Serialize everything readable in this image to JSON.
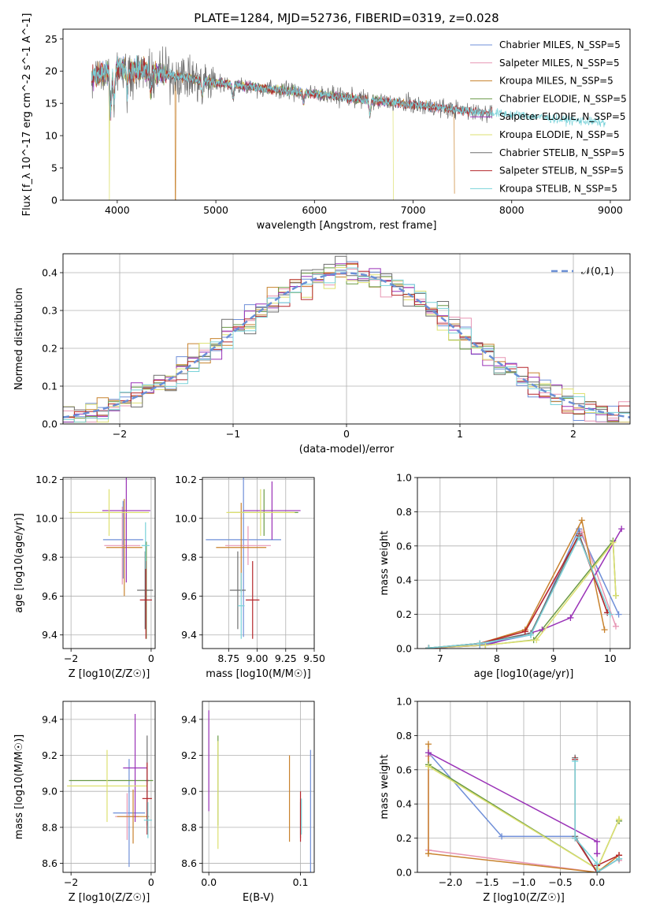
{
  "figure_title": "PLATE=1284, MJD=52736, FIBERID=0319, z=0.028",
  "colors": [
    "#6f8fd8",
    "#e796b4",
    "#c8822d",
    "#6a9a45",
    "#9a32b7",
    "#dde070",
    "#6f6f6f",
    "#b5272b",
    "#79d2d9"
  ],
  "chart_data": [
    {
      "type": "line",
      "id": "spectrum",
      "xlabel": "wavelength [Angstrom, rest frame]",
      "ylabel": "Flux [f_λ 10^-17 erg cm^-2 s^-1 A^-1]",
      "xlim": [
        3450,
        9200
      ],
      "ylim": [
        0,
        26.5
      ],
      "xticks": [
        4000,
        5000,
        6000,
        7000,
        8000,
        9000
      ],
      "yticks": [
        0,
        5,
        10,
        15,
        20,
        25
      ],
      "grid": false,
      "legend": "top-right",
      "series": [
        {
          "name": "Chabrier MILES, N_SSP=5",
          "xrange": [
            3740,
            7420
          ]
        },
        {
          "name": "Salpeter MILES, N_SSP=5",
          "xrange": [
            3740,
            7420
          ]
        },
        {
          "name": "Kroupa MILES, N_SSP=5",
          "xrange": [
            3740,
            7420
          ],
          "dips": [
            [
              4590,
              0
            ],
            [
              7420,
              1
            ]
          ]
        },
        {
          "name": "Chabrier ELODIE, N_SSP=5",
          "xrange": [
            3740,
            6800
          ]
        },
        {
          "name": "Salpeter ELODIE, N_SSP=5",
          "xrange": [
            3740,
            6800
          ]
        },
        {
          "name": "Kroupa ELODIE, N_SSP=5",
          "xrange": [
            3740,
            6800
          ],
          "dips": [
            [
              3920,
              0
            ],
            [
              6800,
              0
            ]
          ]
        },
        {
          "name": "Chabrier STELIB, N_SSP=5",
          "xrange": [
            3740,
            7800
          ]
        },
        {
          "name": "Salpeter STELIB, N_SSP=5",
          "xrange": [
            3740,
            7800
          ]
        },
        {
          "name": "Kroupa STELIB, N_SSP=5",
          "xrange": [
            3740,
            8950
          ]
        }
      ],
      "continuum": [
        [
          3740,
          19
        ],
        [
          4000,
          20.5
        ],
        [
          4500,
          19.5
        ],
        [
          5000,
          18.2
        ],
        [
          5500,
          17.3
        ],
        [
          6000,
          16.5
        ],
        [
          6500,
          15.6
        ],
        [
          7000,
          14.8
        ],
        [
          7500,
          13.9
        ],
        [
          8000,
          13.3
        ],
        [
          8500,
          12.5
        ],
        [
          8950,
          12
        ]
      ]
    },
    {
      "type": "histogram",
      "id": "residuals",
      "xlabel": "(data-model)/error",
      "ylabel": "Normed distribution",
      "xlim": [
        -2.5,
        2.5
      ],
      "ylim": [
        0,
        0.45
      ],
      "xticks": [
        -2,
        -1,
        0,
        1,
        2
      ],
      "yticks": [
        0.0,
        0.1,
        0.2,
        0.3,
        0.4
      ],
      "grid": true,
      "legend": "top-right",
      "reference": {
        "name": "𝒩(0,1)",
        "mean": 0,
        "sigma": 1
      },
      "bin_width": 0.1
    },
    {
      "type": "errorbar",
      "id": "age_vs_Z",
      "xlabel": "Z [log10(Z/Z☉)]",
      "ylabel": "age  [log10(age/yr)]",
      "xlim": [
        -2.2,
        0.1
      ],
      "ylim": [
        9.33,
        10.21
      ],
      "xticks": [
        -2,
        0
      ],
      "yticks": [
        9.4,
        9.6,
        9.8,
        10.0,
        10.2
      ],
      "grid": true,
      "points": [
        {
          "c": 0,
          "x": -0.7,
          "xerr": 0.5,
          "y": 9.89,
          "yerr": 0.2
        },
        {
          "c": 1,
          "x": -0.72,
          "xerr": 0.45,
          "y": 9.86,
          "yerr": 0.2
        },
        {
          "c": 2,
          "x": -0.67,
          "xerr": 0.45,
          "y": 9.85,
          "yerr": 0.25
        },
        {
          "c": 3,
          "x": -0.12,
          "xerr": 0.05,
          "y": 9.63,
          "yerr": 0.25
        },
        {
          "c": 4,
          "x": -0.62,
          "xerr": 0.6,
          "y": 10.04,
          "yerr": 0.37
        },
        {
          "c": 5,
          "x": -1.05,
          "xerr": 1.0,
          "y": 10.03,
          "yerr": 0.12
        },
        {
          "c": 6,
          "x": -0.15,
          "xerr": 0.2,
          "y": 9.63,
          "yerr": 0.2
        },
        {
          "c": 7,
          "x": -0.13,
          "xerr": 0.15,
          "y": 9.58,
          "yerr": 0.2
        },
        {
          "c": 8,
          "x": -0.14,
          "xerr": 0.1,
          "y": 9.86,
          "yerr": 0.12
        }
      ]
    },
    {
      "type": "errorbar",
      "id": "age_vs_mass",
      "xlabel": "mass [log10(M/M☉)]",
      "ylabel": "",
      "xlim": [
        8.52,
        9.5
      ],
      "ylim": [
        9.33,
        10.21
      ],
      "xticks": [
        8.75,
        9.0,
        9.25,
        9.5
      ],
      "yticks": [
        9.4,
        9.6,
        9.8,
        10.0,
        10.2
      ],
      "grid": true,
      "points": [
        {
          "c": 0,
          "x": 8.88,
          "xerr": 0.33,
          "y": 9.89,
          "yerr": 0.5
        },
        {
          "c": 1,
          "x": 8.92,
          "xerr": 0.2,
          "y": 9.86,
          "yerr": 0.1
        },
        {
          "c": 2,
          "x": 8.86,
          "xerr": 0.22,
          "y": 9.85,
          "yerr": 0.23
        },
        {
          "c": 3,
          "x": 9.06,
          "xerr": 0.3,
          "y": 10.03,
          "yerr": 0.12
        },
        {
          "c": 4,
          "x": 9.13,
          "xerr": 0.25,
          "y": 10.04,
          "yerr": 0.15
        },
        {
          "c": 5,
          "x": 9.03,
          "xerr": 0.3,
          "y": 10.03,
          "yerr": 0.12
        },
        {
          "c": 6,
          "x": 8.83,
          "xerr": 0.07,
          "y": 9.63,
          "yerr": 0.2
        },
        {
          "c": 7,
          "x": 8.96,
          "xerr": 0.06,
          "y": 9.58,
          "yerr": 0.2
        },
        {
          "c": 8,
          "x": 8.86,
          "xerr": 0.03,
          "y": 9.55,
          "yerr": 0.17
        }
      ]
    },
    {
      "type": "line",
      "id": "weight_vs_age",
      "xlabel": "age  [log10(age/yr)]",
      "ylabel": "mass weight",
      "xlim": [
        6.6,
        10.35
      ],
      "ylim": [
        0,
        1.0
      ],
      "xticks": [
        7,
        8,
        9,
        10
      ],
      "yticks": [
        0.0,
        0.2,
        0.4,
        0.6,
        0.8,
        1.0
      ],
      "grid": true,
      "series": [
        {
          "c": 0,
          "x": [
            6.8,
            7.7,
            8.6,
            9.45,
            10.15
          ],
          "y": [
            0.003,
            0.02,
            0.08,
            0.7,
            0.2
          ]
        },
        {
          "c": 1,
          "x": [
            6.8,
            7.7,
            8.5,
            9.5,
            10.1
          ],
          "y": [
            0.002,
            0.03,
            0.1,
            0.68,
            0.13
          ]
        },
        {
          "c": 2,
          "x": [
            6.8,
            7.7,
            8.5,
            9.5,
            9.9
          ],
          "y": [
            0.003,
            0.03,
            0.11,
            0.75,
            0.11
          ]
        },
        {
          "c": 3,
          "x": [
            6.8,
            7.8,
            8.65,
            10.05,
            10.1
          ],
          "y": [
            0.002,
            0.02,
            0.05,
            0.63,
            0.31
          ]
        },
        {
          "c": 4,
          "x": [
            6.8,
            7.8,
            8.8,
            9.3,
            10.2
          ],
          "y": [
            0.002,
            0.02,
            0.11,
            0.18,
            0.7
          ]
        },
        {
          "c": 5,
          "x": [
            6.8,
            7.8,
            8.7,
            10.05,
            10.1
          ],
          "y": [
            0.003,
            0.02,
            0.05,
            0.62,
            0.31
          ]
        },
        {
          "c": 6,
          "x": [
            6.8,
            7.7,
            8.6,
            9.45,
            9.95
          ],
          "y": [
            0.003,
            0.03,
            0.09,
            0.67,
            0.21
          ]
        },
        {
          "c": 7,
          "x": [
            6.8,
            7.7,
            8.5,
            9.45,
            9.95
          ],
          "y": [
            0.002,
            0.03,
            0.1,
            0.66,
            0.21
          ]
        },
        {
          "c": 8,
          "x": [
            6.8,
            7.7,
            8.6,
            9.45,
            10.0
          ],
          "y": [
            0.003,
            0.03,
            0.08,
            0.65,
            0.2
          ]
        }
      ]
    },
    {
      "type": "errorbar",
      "id": "mass_vs_Z",
      "xlabel": "Z [log10(Z/Z☉)]",
      "ylabel": "mass [log10(M/M☉)]",
      "xlim": [
        -2.2,
        0.1
      ],
      "ylim": [
        8.55,
        9.5
      ],
      "xticks": [
        -2,
        0
      ],
      "yticks": [
        8.6,
        8.8,
        9.0,
        9.2,
        9.4
      ],
      "grid": true,
      "points": [
        {
          "c": 0,
          "x": -0.55,
          "xerr": 0.4,
          "y": 8.88,
          "yerr": 0.3
        },
        {
          "c": 1,
          "x": -0.6,
          "xerr": 0.3,
          "y": 8.86,
          "yerr": 0.13
        },
        {
          "c": 2,
          "x": -0.45,
          "xerr": 0.4,
          "y": 8.86,
          "yerr": 0.15
        },
        {
          "c": 3,
          "x": -1.0,
          "xerr": 1.05,
          "y": 9.06,
          "yerr": 0.0
        },
        {
          "c": 4,
          "x": -0.4,
          "xerr": 0.3,
          "y": 9.13,
          "yerr": 0.3
        },
        {
          "c": 5,
          "x": -1.1,
          "xerr": 1.0,
          "y": 9.03,
          "yerr": 0.2
        },
        {
          "c": 6,
          "x": -0.1,
          "xerr": 0.05,
          "y": 9.06,
          "yerr": 0.25
        },
        {
          "c": 7,
          "x": -0.1,
          "xerr": 0.12,
          "y": 8.96,
          "yerr": 0.2
        },
        {
          "c": 8,
          "x": -0.08,
          "xerr": 0.1,
          "y": 8.84,
          "yerr": 0.1
        }
      ]
    },
    {
      "type": "errorbar",
      "id": "mass_vs_ebv",
      "xlabel": "E(B-V)",
      "ylabel": "",
      "xlim": [
        -0.007,
        0.115
      ],
      "ylim": [
        8.55,
        9.5
      ],
      "xticks": [
        0.0,
        0.1
      ],
      "yticks": [
        8.6,
        8.8,
        9.0,
        9.2,
        9.4
      ],
      "grid": true,
      "points": [
        {
          "c": 0,
          "x": 0.111,
          "xerr": 0,
          "y": 8.88,
          "yerr": 0.35
        },
        {
          "c": 1,
          "x": 0.1,
          "xerr": 0,
          "y": 8.86,
          "yerr": 0.1
        },
        {
          "c": 2,
          "x": 0.088,
          "xerr": 0,
          "y": 8.96,
          "yerr": 0.24
        },
        {
          "c": 3,
          "x": 0.01,
          "xerr": 0,
          "y": 9.06,
          "yerr": 0.25
        },
        {
          "c": 4,
          "x": 0.0,
          "xerr": 0,
          "y": 9.17,
          "yerr": 0.28
        },
        {
          "c": 5,
          "x": 0.01,
          "xerr": 0,
          "y": 8.98,
          "yerr": 0.3
        },
        {
          "c": 6,
          "x": 0.1,
          "xerr": 0,
          "y": 8.84,
          "yerr": 0.1
        },
        {
          "c": 7,
          "x": 0.1,
          "xerr": 0,
          "y": 8.86,
          "yerr": 0.14
        },
        {
          "c": 8,
          "x": 0.101,
          "xerr": 0,
          "y": 8.86,
          "yerr": 0.1
        }
      ]
    },
    {
      "type": "line",
      "id": "weight_vs_Z",
      "xlabel": "Z [log10(Z/Z☉)]",
      "ylabel": "mass weight",
      "xlim": [
        -2.45,
        0.45
      ],
      "ylim": [
        0,
        1.0
      ],
      "xticks": [
        -2.0,
        -1.5,
        -1.0,
        -0.5,
        0.0
      ],
      "yticks": [
        0.0,
        0.2,
        0.4,
        0.6,
        0.8,
        1.0
      ],
      "grid": true,
      "series": [
        {
          "c": 0,
          "x": [
            -2.3,
            -1.3,
            -0.3,
            0.0,
            0.3
          ],
          "y": [
            0.7,
            0.21,
            0.21,
            0.0,
            0.08
          ]
        },
        {
          "c": 1,
          "x": [
            -2.3,
            -2.3,
            0.0,
            0.3,
            0.3
          ],
          "y": [
            0.68,
            0.13,
            0.0,
            0.1,
            0.07
          ]
        },
        {
          "c": 2,
          "x": [
            -2.3,
            -2.3,
            -2.3,
            0.0,
            0.3
          ],
          "y": [
            0.75,
            0.11,
            0.11,
            0.0,
            0.1
          ]
        },
        {
          "c": 3,
          "x": [
            -2.3,
            0.0,
            0.3,
            0.3,
            0.3
          ],
          "y": [
            0.63,
            0.02,
            0.31,
            0.3,
            0.3
          ]
        },
        {
          "c": 4,
          "x": [
            -2.3,
            0.0,
            0.0,
            0.0,
            0.0
          ],
          "y": [
            0.7,
            0.18,
            0.11,
            0.11,
            0.11
          ]
        },
        {
          "c": 5,
          "x": [
            -2.3,
            0.0,
            0.3,
            0.3,
            0.3
          ],
          "y": [
            0.62,
            0.02,
            0.31,
            0.31,
            0.31
          ]
        },
        {
          "c": 6,
          "x": [
            -0.3,
            -0.3,
            0.0,
            0.3,
            0.3
          ],
          "y": [
            0.67,
            0.21,
            0.0,
            0.08,
            0.08
          ]
        },
        {
          "c": 7,
          "x": [
            -0.3,
            -0.3,
            0.0,
            0.0,
            0.3
          ],
          "y": [
            0.66,
            0.2,
            0.0,
            0.04,
            0.1
          ]
        },
        {
          "c": 8,
          "x": [
            -0.3,
            -0.3,
            0.0,
            0.0,
            0.3
          ],
          "y": [
            0.65,
            0.2,
            0.05,
            0.0,
            0.08
          ]
        }
      ]
    }
  ]
}
